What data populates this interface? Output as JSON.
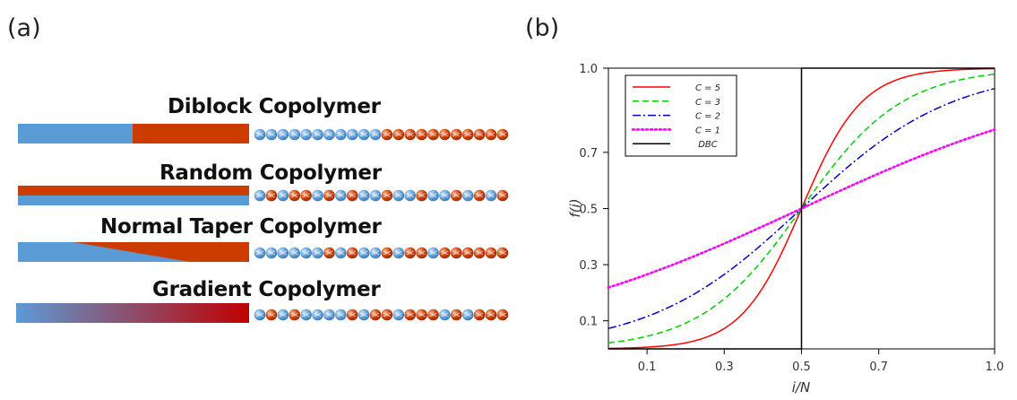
{
  "panel_a": {
    "label": "(a)",
    "copolymers": [
      {
        "title": "Diblock Copolymer",
        "bar": "diblock",
        "beads": "bbbbbbbbbbbrrrrrrrrrrr"
      },
      {
        "title": "Random Copolymer",
        "bar": "random",
        "beads": "brbrrbrbrbbrbbrbbrbrbr"
      },
      {
        "title": "Normal Taper Copolymer",
        "bar": "taper",
        "beads": "bbbbbbrbrbbrbrrbrrrrrr"
      },
      {
        "title": "Gradient Copolymer",
        "bar": "gradient",
        "beads": "brbrbbbbrbrrbrrrbrbrrr"
      }
    ],
    "colors": {
      "blue": "#5b9bd5",
      "red": "#cc3b00",
      "gradient_end": "#c00000"
    }
  },
  "panel_b": {
    "label": "(b)",
    "chart_data": {
      "type": "line",
      "xlabel": "i/N",
      "ylabel": "f(i)",
      "xlim": [
        0.0,
        1.0
      ],
      "ylim": [
        0.0,
        1.0
      ],
      "xticks": [
        0.1,
        0.3,
        0.5,
        0.7,
        1.0
      ],
      "xtick_labels": [
        "0.1",
        "0.3",
        "0.5",
        "0.7",
        "1.0"
      ],
      "yticks": [
        0.1,
        0.3,
        0.5,
        0.7,
        1.0
      ],
      "ytick_labels": [
        "0.1",
        "0.3",
        "0.5",
        "0.7",
        "1.0"
      ],
      "legend_position": "top-left",
      "grid": false,
      "series": [
        {
          "name": "C = 5",
          "C": 5,
          "color": "#ff0000",
          "dash": "solid"
        },
        {
          "name": "C = 3",
          "C": 3,
          "color": "#00cc00",
          "dash": "dashed"
        },
        {
          "name": "C = 2",
          "C": 2,
          "color": "#0000cc",
          "dash": "dash-dot"
        },
        {
          "name": "C = 1",
          "C": 1,
          "color": "#ff00ff",
          "dash": "dotted"
        },
        {
          "name": "DBC",
          "C": null,
          "color": "#000000",
          "dash": "solid",
          "x": [
            0.0,
            0.5,
            0.5,
            1.0
          ],
          "y": [
            0.0,
            0.0,
            1.0,
            1.0
          ]
        }
      ]
    }
  }
}
